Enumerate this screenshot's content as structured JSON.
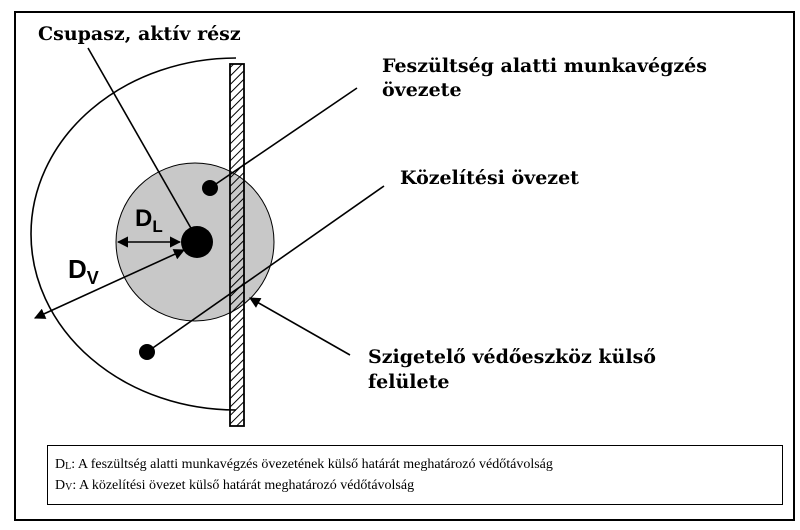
{
  "labels": {
    "bare_part": "Csupasz, aktív rész",
    "live_work_zone_line1": "Feszültség alatti munkavégzés",
    "live_work_zone_line2": "övezete",
    "approach_zone": "Közelítési övezet",
    "insulating_surface_line1": "Szigetelő védőeszköz külső",
    "insulating_surface_line2": "felülete"
  },
  "symbols": {
    "dl_main": "D",
    "dl_sub": "L",
    "dv_main": "D",
    "dv_sub": "V"
  },
  "legend": {
    "dl_main": "D",
    "dl_sub": "L",
    "dl_text": ": A feszültség alatti munkavégzés övezetének külső határát meghatározó védőtávolság",
    "dv_main": "D",
    "dv_sub": "V",
    "dv_text": ": A közelítési övezet külső határát meghatározó védőtávolság"
  },
  "colors": {
    "inner_zone_fill": "#c8c8c8",
    "line": "#000000",
    "background": "#ffffff"
  }
}
